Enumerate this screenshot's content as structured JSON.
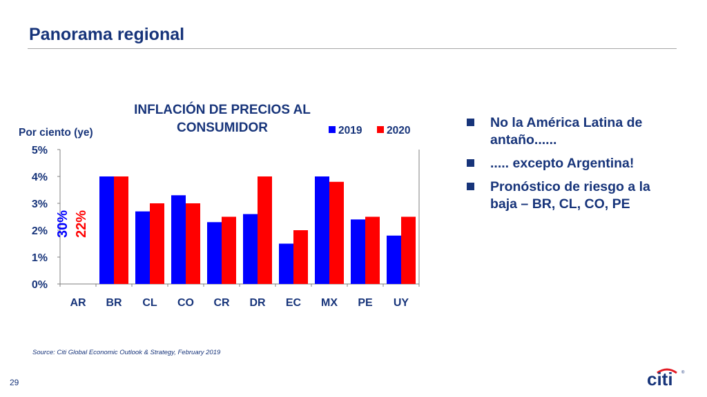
{
  "slide": {
    "title": "Panorama regional",
    "page_number": "29",
    "source": "Source: Citi Global Economic Outlook & Strategy, February 2019",
    "logo_text": "citi"
  },
  "bullets": [
    "No la América Latina de antaño......",
    "..... excepto Argentina!",
    "Pronóstico de riesgo a la baja – BR, CL, CO, PE"
  ],
  "colors": {
    "brand": "#17347a",
    "series_2019": "#0000ff",
    "series_2020": "#ff0000",
    "logo_arc": "#e31b23"
  },
  "chart_data": {
    "type": "bar",
    "title_lines": [
      "INFLACIÓN DE PRECIOS AL",
      "CONSUMIDOR"
    ],
    "ylabel": "Por ciento (ye)",
    "ylim": [
      0,
      5
    ],
    "yticks": [
      "0%",
      "1%",
      "2%",
      "3%",
      "4%",
      "5%"
    ],
    "categories": [
      "AR",
      "BR",
      "CL",
      "CO",
      "CR",
      "DR",
      "EC",
      "MX",
      "PE",
      "UY"
    ],
    "series": [
      {
        "name": "2019",
        "values": [
          null,
          4.0,
          2.7,
          3.3,
          2.3,
          2.6,
          1.5,
          4.0,
          2.4,
          1.8
        ]
      },
      {
        "name": "2020",
        "values": [
          null,
          4.0,
          3.0,
          3.0,
          2.5,
          4.0,
          2.0,
          3.8,
          2.5,
          2.5
        ]
      }
    ],
    "annotations": [
      {
        "category": "AR",
        "series": "2019",
        "text": "30%"
      },
      {
        "category": "AR",
        "series": "2020",
        "text": "22%"
      }
    ],
    "legend": "top-right"
  }
}
